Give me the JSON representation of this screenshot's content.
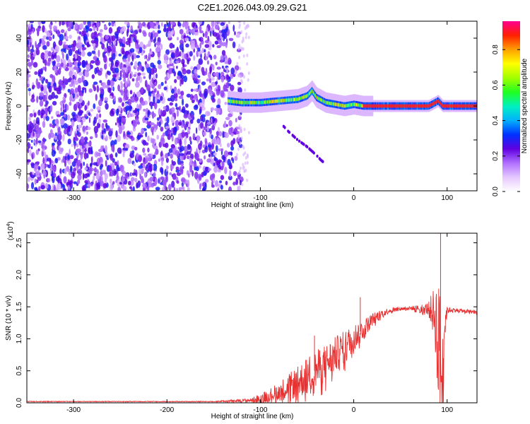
{
  "title": "C2E1.2026.043.09.29.G21",
  "chart_data": [
    {
      "type": "heatmap",
      "title": "C2E1.2026.043.09.29.G21",
      "xlabel": "Height of straight line (km)",
      "ylabel": "Frequency (Hz)",
      "xlim": [
        -350,
        132
      ],
      "ylim": [
        -50,
        50
      ],
      "xticks": [
        "-300",
        "-200",
        "-100",
        "0",
        "100"
      ],
      "xtick_values": [
        -300,
        -200,
        -100,
        0,
        100
      ],
      "yticks": [
        "40",
        "20",
        "0",
        "-20",
        "-40"
      ],
      "ytick_values": [
        40,
        20,
        0,
        -20,
        -40
      ],
      "noise_region_x": [
        -350,
        -120
      ],
      "ridge": {
        "x": [
          -135,
          -120,
          -100,
          -80,
          -60,
          -50,
          -45,
          -40,
          -30,
          -20,
          -10,
          0,
          10,
          30,
          60,
          80,
          87,
          90,
          95,
          110,
          132
        ],
        "freq_hz": [
          3,
          2,
          2,
          3,
          4,
          6,
          9,
          5,
          2,
          1,
          0,
          1,
          0,
          0,
          0,
          0,
          2,
          3,
          0,
          0,
          0
        ]
      },
      "secondary_track": {
        "x": [
          -75,
          -70,
          -60,
          -50,
          -40,
          -35,
          -30
        ],
        "freq_hz": [
          -12,
          -15,
          -20,
          -24,
          -29,
          -32,
          -34
        ]
      },
      "colorbar": {
        "label": "Normalized spectral amplitude",
        "range": [
          0.0,
          0.96
        ],
        "ticks": [
          "0.0",
          "0.2",
          "0.4",
          "0.6",
          "0.8"
        ],
        "tick_values": [
          0.0,
          0.2,
          0.4,
          0.6,
          0.8
        ],
        "colors": [
          "#ffffff",
          "#e6c8ff",
          "#b070ff",
          "#6000e0",
          "#0030ff",
          "#00b0ff",
          "#00f0c0",
          "#20ff20",
          "#a0ff00",
          "#ffff00",
          "#ffa000",
          "#ff2000",
          "#ff0090"
        ]
      }
    },
    {
      "type": "line",
      "xlabel": "Height of straight line (km)",
      "ylabel": "SNR (10 * v/v)",
      "multiplier": "(x10",
      "multiplier_exp": "4",
      "multiplier_close": ")",
      "xlim": [
        -350,
        132
      ],
      "ylim": [
        0,
        2.65
      ],
      "xticks": [
        "-300",
        "-200",
        "-100",
        "0",
        "100"
      ],
      "xtick_values": [
        -300,
        -200,
        -100,
        0,
        100
      ],
      "yticks": [
        "0.0",
        "0.5",
        "1.0",
        "1.5",
        "2.0",
        "2.5"
      ],
      "ytick_values": [
        0.0,
        0.5,
        1.0,
        1.5,
        2.0,
        2.5
      ],
      "color": "#e83030",
      "envelope": {
        "x": [
          -350,
          -150,
          -110,
          -100,
          -90,
          -80,
          -70,
          -60,
          -50,
          -40,
          -30,
          -20,
          -10,
          0,
          10,
          20,
          30,
          40,
          50,
          60,
          70,
          80,
          85,
          88,
          90,
          93,
          95,
          97,
          100,
          110,
          120,
          132
        ],
        "base": [
          0.02,
          0.02,
          0.04,
          0.07,
          0.12,
          0.18,
          0.25,
          0.32,
          0.42,
          0.52,
          0.62,
          0.75,
          0.88,
          1.02,
          1.15,
          1.3,
          1.4,
          1.45,
          1.47,
          1.48,
          1.48,
          1.47,
          1.42,
          1.3,
          1.1,
          0.6,
          0.2,
          1.2,
          1.45,
          1.45,
          1.43,
          1.42
        ],
        "amplitude": [
          0.005,
          0.005,
          0.03,
          0.08,
          0.1,
          0.15,
          0.2,
          0.25,
          0.3,
          0.3,
          0.3,
          0.28,
          0.25,
          0.22,
          0.15,
          0.1,
          0.06,
          0.04,
          0.03,
          0.03,
          0.05,
          0.1,
          0.35,
          0.6,
          0.9,
          1.1,
          0.9,
          0.4,
          0.05,
          0.03,
          0.03,
          0.03
        ]
      },
      "peaks": [
        {
          "x": 7,
          "y": 1.65
        },
        {
          "x": -42,
          "y": 1.05
        },
        {
          "x": 93,
          "y": 2.65
        },
        {
          "x": 96,
          "y": 0.02
        }
      ]
    }
  ]
}
